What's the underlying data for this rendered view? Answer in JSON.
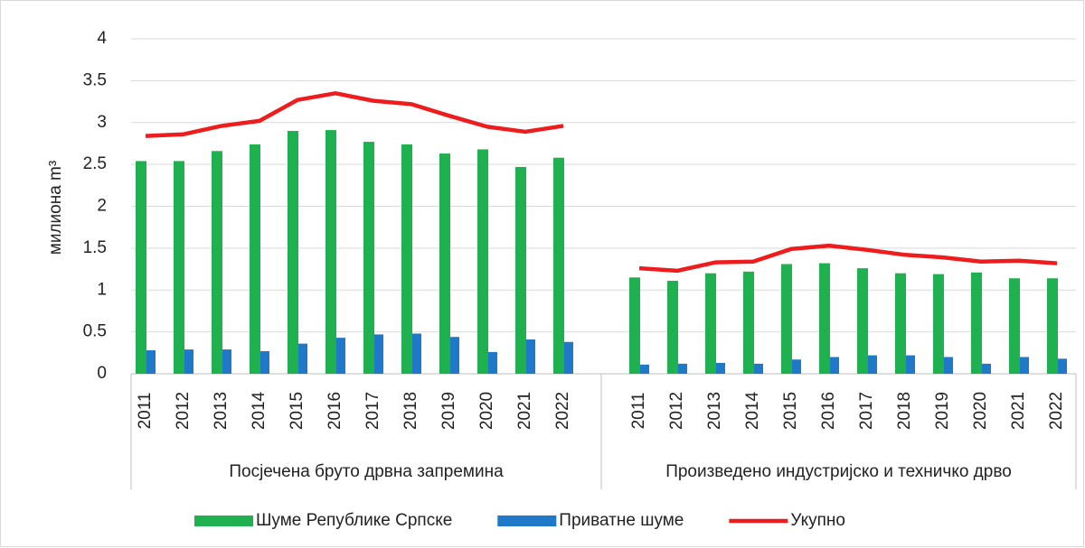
{
  "chart_data": {
    "type": "bar",
    "y_label": "милиона m³",
    "group_labels": [
      "Посјечена бруто дрвна запремина",
      "Произведено индустријско и техничко дрво"
    ],
    "categories": [
      "2011",
      "2012",
      "2013",
      "2014",
      "2015",
      "2016",
      "2017",
      "2018",
      "2019",
      "2020",
      "2021",
      "2022",
      null,
      "2011",
      "2012",
      "2013",
      "2014",
      "2015",
      "2016",
      "2017",
      "2018",
      "2019",
      "2020",
      "2021",
      "2022"
    ],
    "series": [
      {
        "name": "Шуме Републике Српске",
        "type": "bar",
        "color": "#1fb04f",
        "values": [
          2.54,
          2.54,
          2.66,
          2.74,
          2.9,
          2.91,
          2.77,
          2.74,
          2.63,
          2.68,
          2.47,
          2.58,
          null,
          1.15,
          1.11,
          1.2,
          1.22,
          1.31,
          1.32,
          1.26,
          1.2,
          1.19,
          1.21,
          1.14,
          1.14
        ]
      },
      {
        "name": "Приватне шуме",
        "type": "bar",
        "color": "#1f78c8",
        "values": [
          0.28,
          0.29,
          0.29,
          0.27,
          0.36,
          0.43,
          0.47,
          0.48,
          0.44,
          0.26,
          0.41,
          0.38,
          null,
          0.11,
          0.12,
          0.13,
          0.12,
          0.17,
          0.2,
          0.22,
          0.22,
          0.2,
          0.12,
          0.2,
          0.18
        ]
      },
      {
        "name": "Укупно",
        "type": "line",
        "color": "#ee1c1c",
        "values": [
          2.84,
          2.86,
          2.96,
          3.02,
          3.27,
          3.35,
          3.26,
          3.22,
          3.08,
          2.95,
          2.89,
          2.96,
          null,
          1.26,
          1.23,
          1.33,
          1.34,
          1.49,
          1.53,
          1.48,
          1.42,
          1.39,
          1.34,
          1.35,
          1.32
        ]
      }
    ],
    "ylim": [
      0,
      4
    ],
    "yticks": [
      0,
      0.5,
      1,
      1.5,
      2,
      2.5,
      3,
      3.5,
      4
    ],
    "grid": true,
    "legend": "bottom"
  }
}
